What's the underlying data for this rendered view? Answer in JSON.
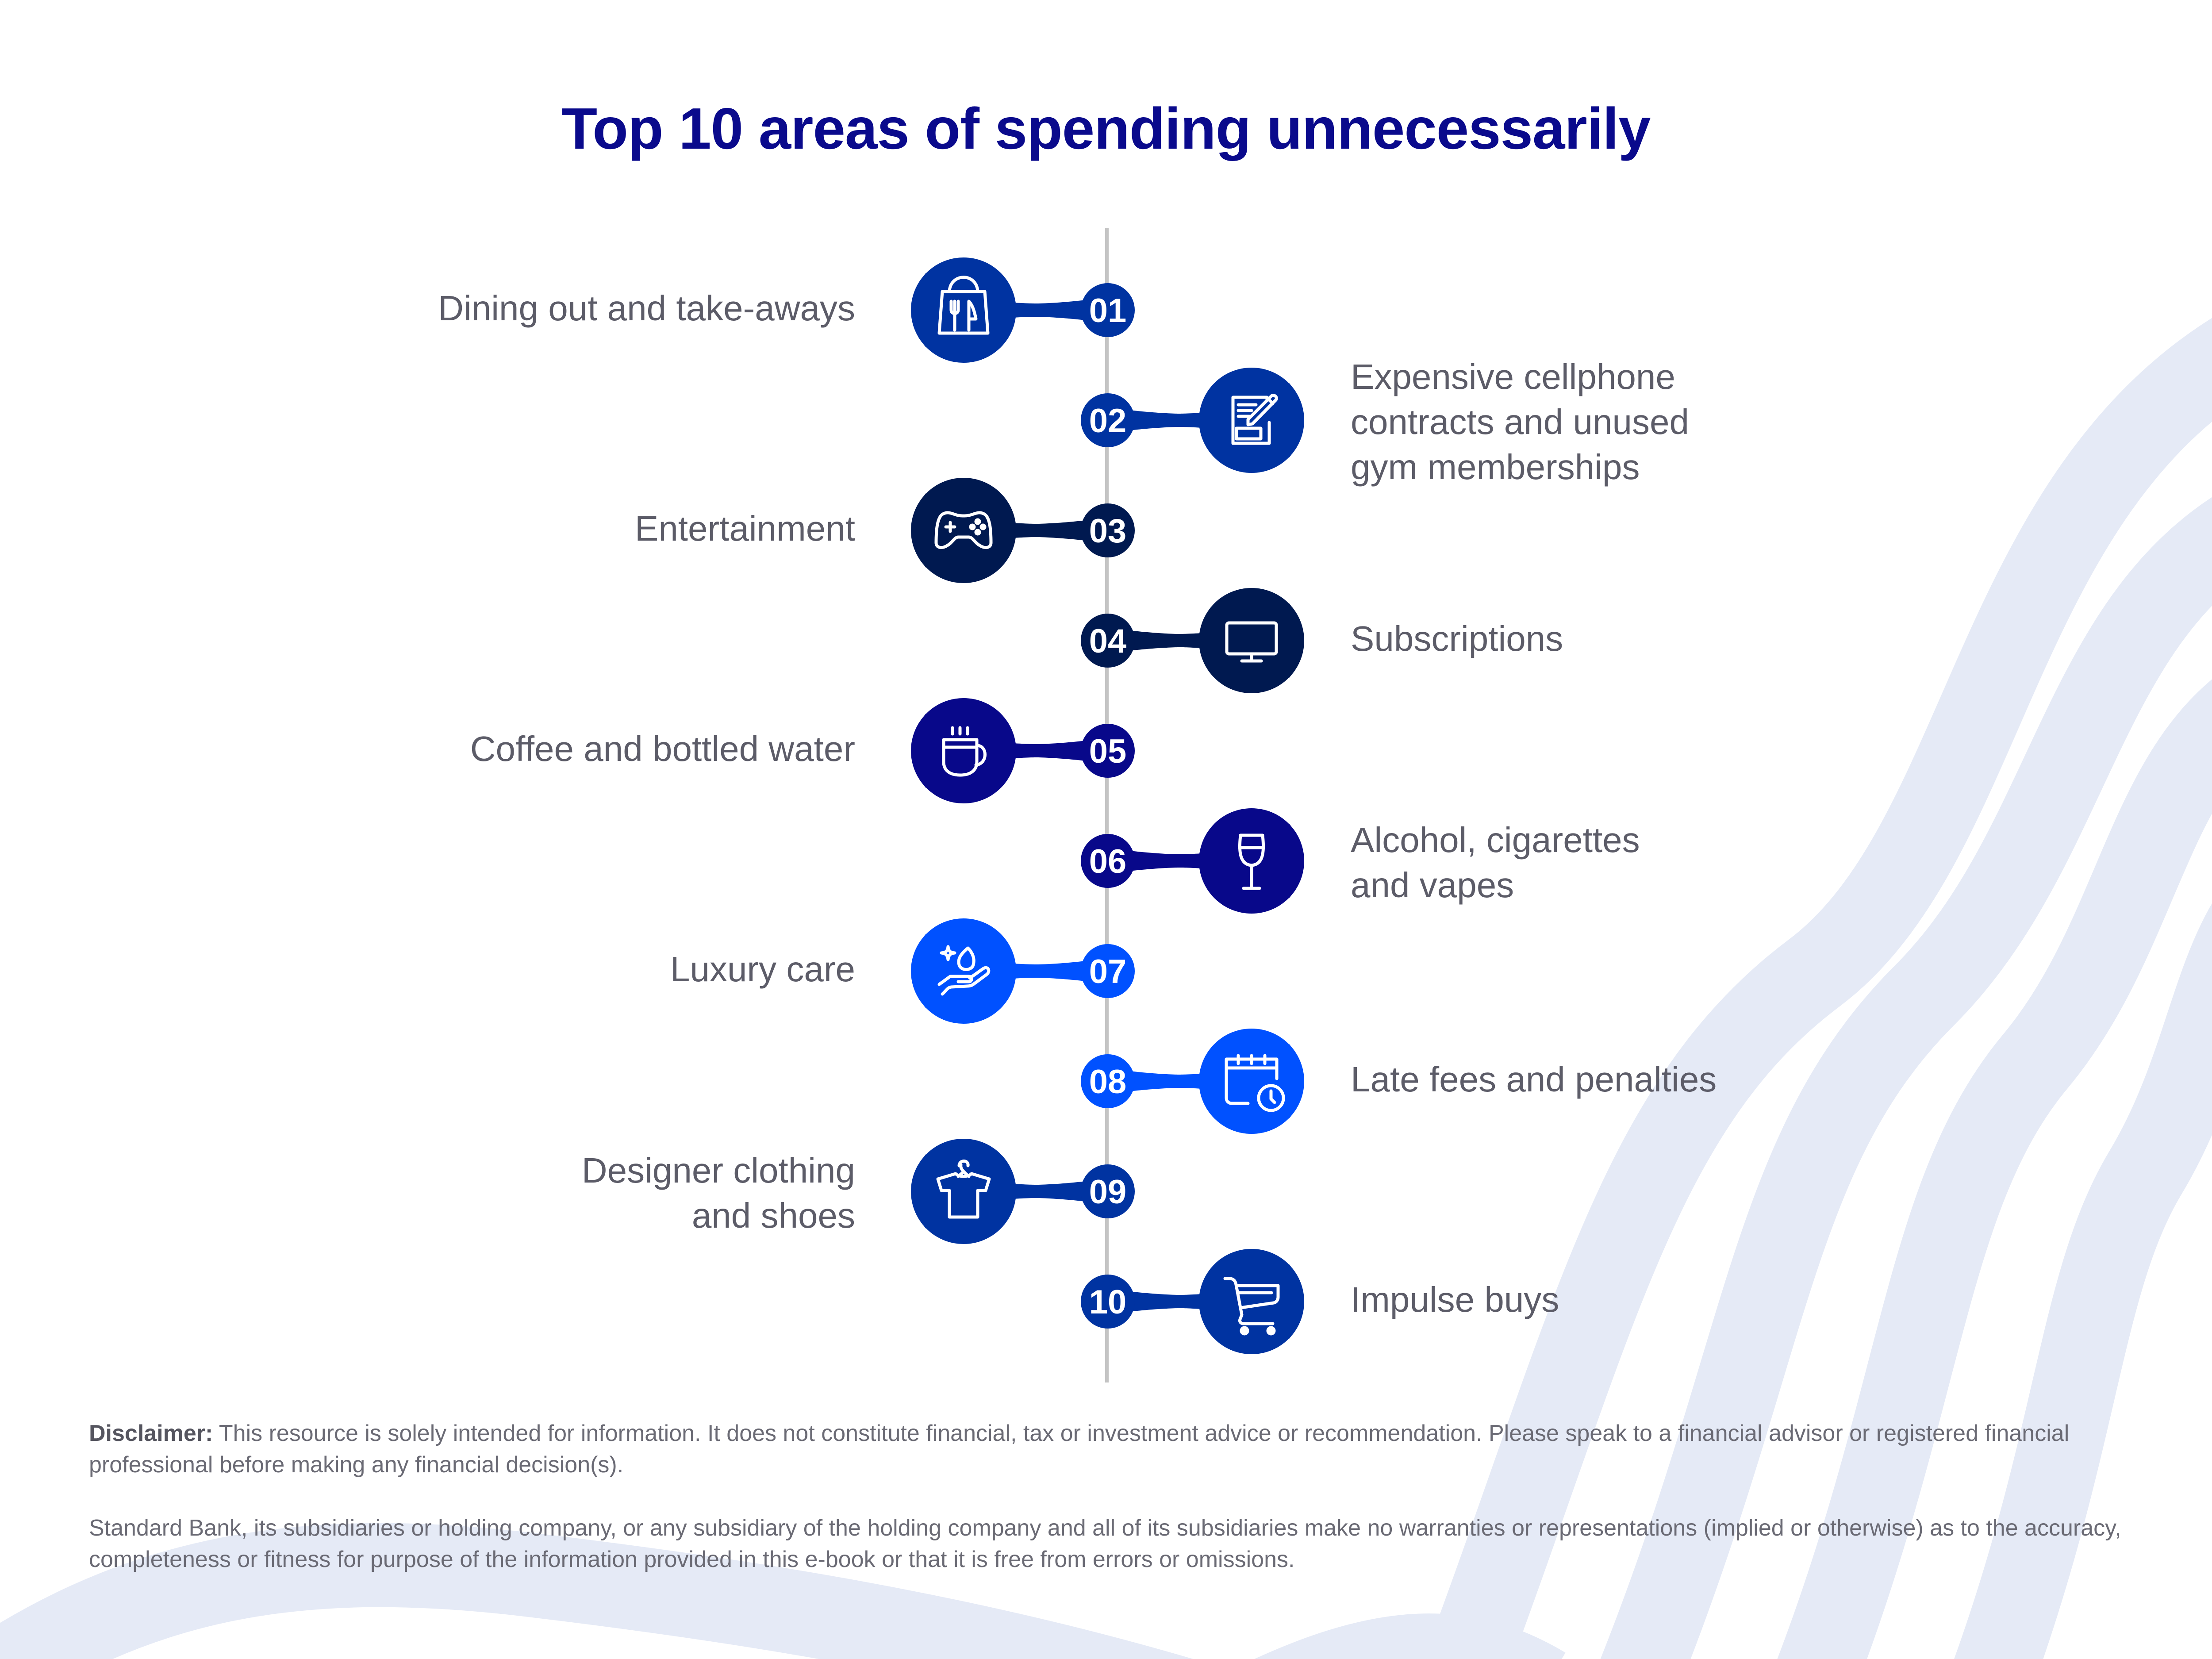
{
  "title": "Top 10 areas of spending unnecessarily",
  "colors": {
    "title": "#0a0a8c",
    "timeline_line": "#c4c4c4",
    "background_waves": "#e5eaf6",
    "label_text": "#5c5c68"
  },
  "items": [
    {
      "number": "01",
      "label": "Dining out and take-aways",
      "side": "left",
      "color": "#0033a1",
      "icon": "takeaway-bag-icon"
    },
    {
      "number": "02",
      "label": "Expensive cellphone contracts and unused gym memberships",
      "lines": [
        "Expensive cellphone",
        "contracts and unused",
        "gym memberships"
      ],
      "side": "right",
      "color": "#0033a1",
      "icon": "contract-pen-icon"
    },
    {
      "number": "03",
      "label": "Entertainment",
      "side": "left",
      "color": "#001950",
      "icon": "game-controller-icon"
    },
    {
      "number": "04",
      "label": "Subscriptions",
      "side": "right",
      "color": "#001950",
      "icon": "monitor-icon"
    },
    {
      "number": "05",
      "label": "Coffee and bottled water",
      "side": "left",
      "color": "#08088a",
      "icon": "coffee-cup-icon"
    },
    {
      "number": "06",
      "label": "Alcohol, cigarettes and vapes",
      "lines": [
        "Alcohol, cigarettes",
        "and vapes"
      ],
      "side": "right",
      "color": "#08088a",
      "icon": "wine-glass-icon"
    },
    {
      "number": "07",
      "label": "Luxury care",
      "side": "left",
      "color": "#0051ff",
      "icon": "hand-drop-icon"
    },
    {
      "number": "08",
      "label": "Late fees and penalties",
      "side": "right",
      "color": "#0051ff",
      "icon": "calendar-clock-icon"
    },
    {
      "number": "09",
      "label": "Designer clothing and shoes",
      "lines": [
        "Designer clothing",
        "and shoes"
      ],
      "side": "left",
      "color": "#0033a1",
      "icon": "shirt-hanger-icon"
    },
    {
      "number": "10",
      "label": "Impulse buys",
      "side": "right",
      "color": "#0033a1",
      "icon": "shopping-cart-icon"
    }
  ],
  "disclaimer": {
    "heading": "Disclaimer:",
    "text": " This resource is solely intended for information. It does not constitute financial, tax or investment advice or recommendation. Please speak to a financial advisor or registered financial professional before making any financial decision(s).",
    "legal": "Standard Bank, its subsidiaries or holding company, or any subsidiary of the holding company and all of its subsidiaries make no warranties or representations (implied or otherwise) as to the accuracy, completeness or fitness for purpose of the information provided in this e-book or that it is free from errors or omissions."
  }
}
